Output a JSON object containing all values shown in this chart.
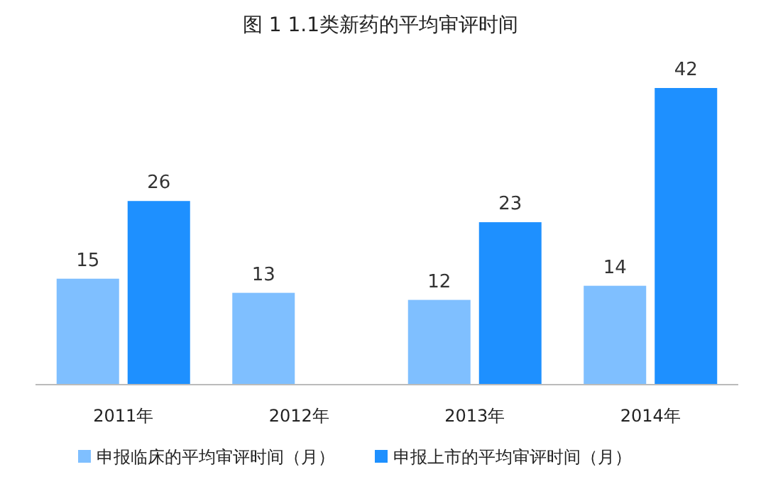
{
  "chart_data": {
    "type": "bar",
    "title": "图 1  1.1类新药的平均审评时间",
    "categories": [
      "2011年",
      "2012年",
      "2013年",
      "2014年"
    ],
    "series": [
      {
        "name": "申报临床的平均审评时间（月）",
        "color": "#7fbfff",
        "values": [
          15,
          13,
          12,
          14
        ]
      },
      {
        "name": "申报上市的平均审评时间（月）",
        "color": "#1e90ff",
        "values": [
          26,
          null,
          23,
          42
        ]
      }
    ],
    "data_labels": true,
    "legend": "bottom"
  }
}
